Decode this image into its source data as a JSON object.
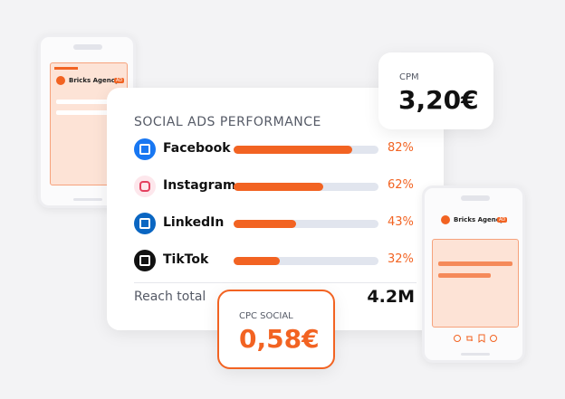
{
  "card": {
    "title": "SOCIAL ADS PERFORMANCE",
    "platforms": [
      {
        "name": "Facebook",
        "value": 82,
        "label": "82%"
      },
      {
        "name": "Instagram",
        "value": 62,
        "label": "62%"
      },
      {
        "name": "LinkedIn",
        "value": 43,
        "label": "43%"
      },
      {
        "name": "TikTok",
        "value": 32,
        "label": "32%"
      }
    ],
    "reach_label": "Reach total",
    "reach_value": "4.2M"
  },
  "cpm": {
    "label": "CPM",
    "value": "3,20€"
  },
  "cpc": {
    "label": "CPC SOCIAL",
    "value": "0,58€"
  },
  "phone_left": {
    "brand": "Bricks Agency",
    "badge": "AD"
  },
  "phone_right": {
    "brand": "Bricks Agency",
    "badge": "AD"
  }
}
